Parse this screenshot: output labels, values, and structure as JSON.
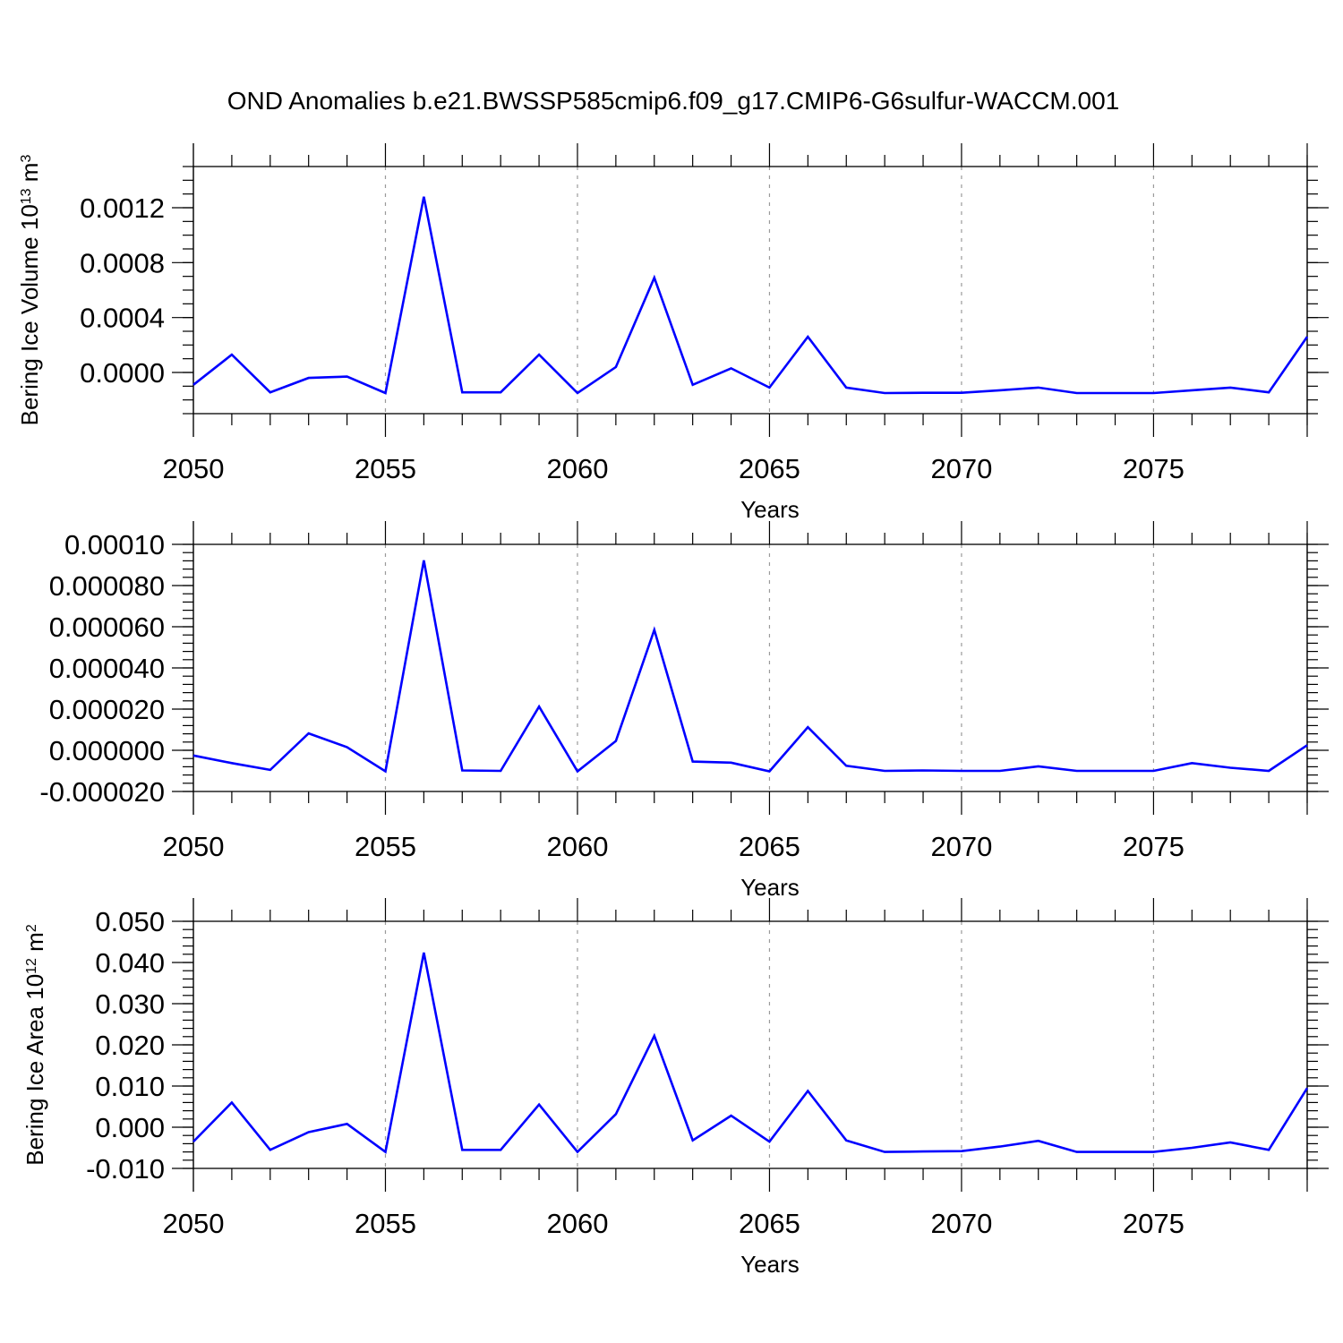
{
  "title": "OND Anomalies b.e21.BWSSP585cmip6.f09_g17.CMIP6-G6sulfur-WACCM.001",
  "colors": {
    "series": "#0000ff",
    "grid": "#9a9a9a",
    "axis": "#000000"
  },
  "chart_data": [
    {
      "type": "line",
      "ylabel": {
        "prefix": "Bering Ice Volume 10",
        "exp": "13",
        "unit": " m",
        "unit_exp": "3"
      },
      "xlabel": "Years",
      "xlim": [
        2050,
        2079
      ],
      "ylim": [
        -0.0003,
        0.0015
      ],
      "x_ticks": [
        "2050",
        "2055",
        "2060",
        "2065",
        "2070",
        "2075"
      ],
      "y_ticks": [
        {
          "value": 0.0012,
          "label": "0.0012"
        },
        {
          "value": 0.0008,
          "label": "0.0008"
        },
        {
          "value": 0.0004,
          "label": "0.0004"
        },
        {
          "value": 0.0,
          "label": "0.0000"
        }
      ],
      "y_minor_step": 0.0001,
      "grid": "dashed vertical at major x ticks",
      "x": [
        2050,
        2051,
        2052,
        2053,
        2054,
        2055,
        2056,
        2057,
        2058,
        2059,
        2060,
        2061,
        2062,
        2063,
        2064,
        2065,
        2066,
        2067,
        2068,
        2069,
        2070,
        2071,
        2072,
        2073,
        2074,
        2075,
        2076,
        2077,
        2078,
        2079
      ],
      "values": [
        -9e-05,
        0.00013,
        -0.000145,
        -4e-05,
        -3e-05,
        -0.00015,
        0.00128,
        -0.000145,
        -0.000145,
        0.00013,
        -0.00015,
        4e-05,
        0.00069,
        -9e-05,
        3e-05,
        -0.00011,
        0.00026,
        -0.00011,
        -0.00015,
        -0.000148,
        -0.000148,
        -0.00013,
        -0.00011,
        -0.00015,
        -0.00015,
        -0.00015,
        -0.00013,
        -0.00011,
        -0.000145,
        0.00026
      ]
    },
    {
      "type": "line",
      "ylabel": null,
      "xlabel": "Years",
      "xlim": [
        2050,
        2079
      ],
      "ylim": [
        -2e-05,
        0.0001
      ],
      "x_ticks": [
        "2050",
        "2055",
        "2060",
        "2065",
        "2070",
        "2075"
      ],
      "y_ticks": [
        {
          "value": 0.0001,
          "label": "0.00010"
        },
        {
          "value": 8e-05,
          "label": "0.000080"
        },
        {
          "value": 6e-05,
          "label": "0.000060"
        },
        {
          "value": 4e-05,
          "label": "0.000040"
        },
        {
          "value": 2e-05,
          "label": "0.000020"
        },
        {
          "value": 0.0,
          "label": "0.000000"
        },
        {
          "value": -2e-05,
          "label": "-0.000020"
        }
      ],
      "y_minor_step": 4e-06,
      "grid": "dashed vertical at major x ticks",
      "x": [
        2050,
        2051,
        2052,
        2053,
        2054,
        2055,
        2056,
        2057,
        2058,
        2059,
        2060,
        2061,
        2062,
        2063,
        2064,
        2065,
        2066,
        2067,
        2068,
        2069,
        2070,
        2071,
        2072,
        2073,
        2074,
        2075,
        2076,
        2077,
        2078,
        2079
      ],
      "values": [
        -2.5e-06,
        -6.2e-06,
        -9.5e-06,
        8.2e-06,
        1.5e-06,
        -1.02e-05,
        9.22e-05,
        -9.8e-06,
        -1e-05,
        2.12e-05,
        -1.02e-05,
        4.5e-06,
        5.85e-05,
        -5.5e-06,
        -6e-06,
        -1.02e-05,
        1.12e-05,
        -7.5e-06,
        -1e-05,
        -9.8e-06,
        -1e-05,
        -1e-05,
        -7.8e-06,
        -1e-05,
        -1e-05,
        -1e-05,
        -6.2e-06,
        -8.5e-06,
        -1e-05,
        2.5e-06
      ]
    },
    {
      "type": "line",
      "ylabel": {
        "prefix": "Bering Ice Area 10",
        "exp": "12",
        "unit": " m",
        "unit_exp": "2"
      },
      "xlabel": "Years",
      "xlim": [
        2050,
        2079
      ],
      "ylim": [
        -0.01,
        0.05
      ],
      "x_ticks": [
        "2050",
        "2055",
        "2060",
        "2065",
        "2070",
        "2075"
      ],
      "y_ticks": [
        {
          "value": 0.05,
          "label": "0.050"
        },
        {
          "value": 0.04,
          "label": "0.040"
        },
        {
          "value": 0.03,
          "label": "0.030"
        },
        {
          "value": 0.02,
          "label": "0.020"
        },
        {
          "value": 0.01,
          "label": "0.010"
        },
        {
          "value": 0.0,
          "label": "0.000"
        },
        {
          "value": -0.01,
          "label": "-0.010"
        }
      ],
      "y_minor_step": 0.002,
      "grid": "dashed vertical at major x ticks",
      "x": [
        2050,
        2051,
        2052,
        2053,
        2054,
        2055,
        2056,
        2057,
        2058,
        2059,
        2060,
        2061,
        2062,
        2063,
        2064,
        2065,
        2066,
        2067,
        2068,
        2069,
        2070,
        2071,
        2072,
        2073,
        2074,
        2075,
        2076,
        2077,
        2078,
        2079
      ],
      "values": [
        -0.0035,
        0.006,
        -0.0055,
        -0.0012,
        0.0008,
        -0.006,
        0.0424,
        -0.0055,
        -0.0055,
        0.0055,
        -0.006,
        0.0032,
        0.0222,
        -0.0032,
        0.0028,
        -0.0035,
        0.0088,
        -0.0032,
        -0.006,
        -0.0059,
        -0.0058,
        -0.0047,
        -0.0033,
        -0.006,
        -0.006,
        -0.006,
        -0.005,
        -0.0037,
        -0.0055,
        0.0095
      ]
    }
  ]
}
